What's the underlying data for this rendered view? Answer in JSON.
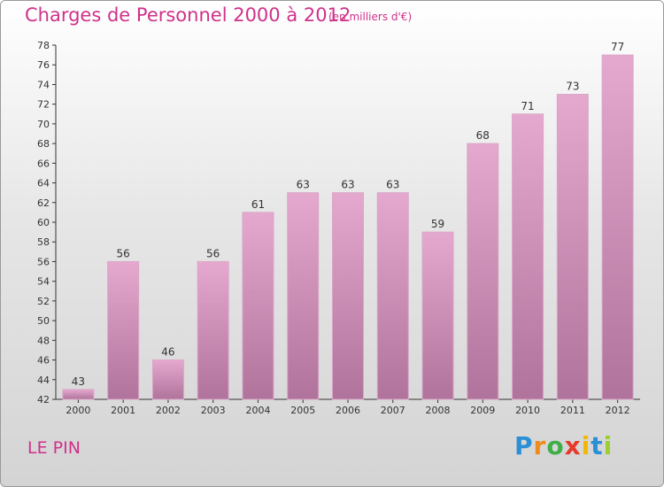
{
  "title": "Charges de Personnel 2000 à 2012",
  "subtitle": "(en milliers d'€)",
  "place": "LE PIN",
  "logo": {
    "letters": [
      "P",
      "r",
      "o",
      "x",
      "i",
      "t",
      "i"
    ],
    "colors": [
      "#2a8fd6",
      "#ef8a1c",
      "#3fae49",
      "#e63a2a",
      "#f2b705",
      "#2a8fd6",
      "#9bcf2e"
    ]
  },
  "colors": {
    "bar_top": "#e5a9cf",
    "bar_bottom": "#b0739b",
    "accent": "#d0318a"
  },
  "chart_data": {
    "type": "bar",
    "categories": [
      "2000",
      "2001",
      "2002",
      "2003",
      "2004",
      "2005",
      "2006",
      "2007",
      "2008",
      "2009",
      "2010",
      "2011",
      "2012"
    ],
    "values": [
      43,
      56,
      46,
      56,
      61,
      63,
      63,
      63,
      59,
      68,
      71,
      73,
      77
    ],
    "ylim": [
      42,
      78
    ],
    "yticks": [
      42,
      44,
      46,
      48,
      50,
      52,
      54,
      56,
      58,
      60,
      62,
      64,
      66,
      68,
      70,
      72,
      74,
      76,
      78
    ],
    "grid": false
  }
}
